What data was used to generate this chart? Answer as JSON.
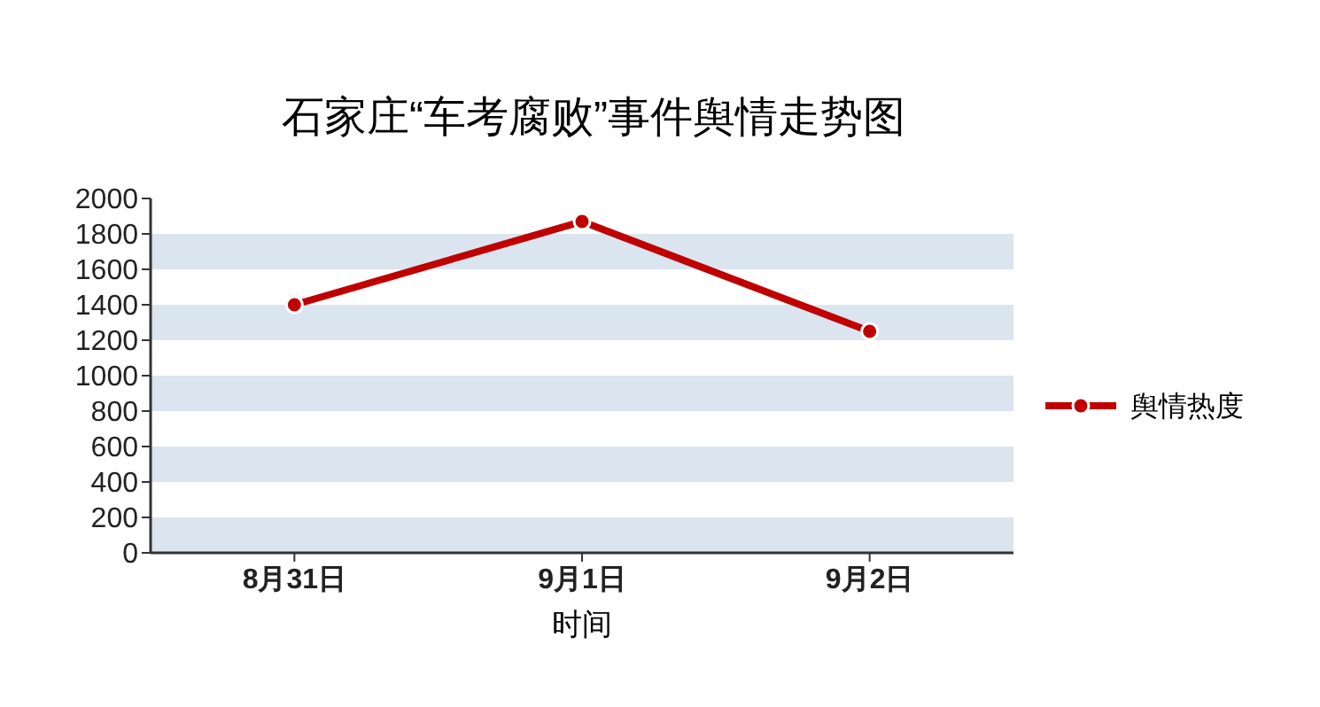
{
  "chart_data": {
    "type": "line",
    "title": "石家庄“车考腐败”事件舆情走势图",
    "xlabel": "时间",
    "categories": [
      "8月31日",
      "9月1日",
      "9月2日"
    ],
    "series": [
      {
        "name": "舆情热度",
        "color": "#c00000",
        "values": [
          1400,
          1870,
          1250
        ]
      }
    ],
    "ylim": [
      0,
      2000
    ],
    "yticks": [
      0,
      200,
      400,
      600,
      800,
      1000,
      1200,
      1400,
      1600,
      1800,
      2000
    ],
    "bands": [
      {
        "axis": "y",
        "from": 0,
        "to": 200,
        "color": "#dae5f0"
      },
      {
        "axis": "y",
        "from": 400,
        "to": 600,
        "color": "#dae5f0"
      },
      {
        "axis": "y",
        "from": 800,
        "to": 1000,
        "color": "#dae5f0"
      },
      {
        "axis": "y",
        "from": 1200,
        "to": 1400,
        "color": "#dae5f0"
      },
      {
        "axis": "y",
        "from": 1600,
        "to": 1800,
        "color": "#dae5f0"
      }
    ],
    "legend": "right",
    "marker": "circle",
    "line_style": "solid"
  }
}
